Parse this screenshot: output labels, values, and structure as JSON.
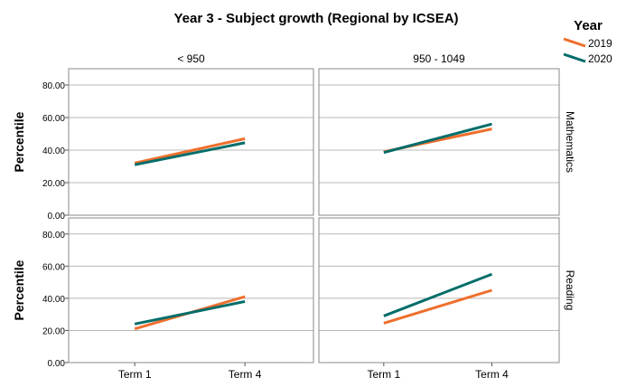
{
  "chart_data": {
    "type": "line",
    "title": "Year 3 - Subject growth (Regional by ICSEA)",
    "ylabel": "Percentile",
    "x": [
      "Term 1",
      "Term 4"
    ],
    "ylim": [
      0,
      90
    ],
    "yticks": [
      "0.00",
      "20.00",
      "40.00",
      "60.00",
      "80.00"
    ],
    "yticks_values": [
      0,
      20,
      40,
      60,
      80
    ],
    "columns": [
      "< 950",
      "950 - 1049"
    ],
    "rows": [
      "Mathematics",
      "Reading"
    ],
    "grid": true,
    "legend": {
      "title": "Year",
      "position": "top-right",
      "entries": [
        {
          "label": "2019",
          "color": "#ee6f2d"
        },
        {
          "label": "2020",
          "color": "#006d6a"
        }
      ]
    },
    "panels": [
      {
        "row": "Mathematics",
        "column": "< 950",
        "series": [
          {
            "name": "2019",
            "color": "#ee6f2d",
            "values": [
              32,
              47
            ]
          },
          {
            "name": "2020",
            "color": "#006d6a",
            "values": [
              31,
              44.5
            ]
          }
        ]
      },
      {
        "row": "Mathematics",
        "column": "950 - 1049",
        "series": [
          {
            "name": "2019",
            "color": "#ee6f2d",
            "values": [
              39,
              53
            ]
          },
          {
            "name": "2020",
            "color": "#006d6a",
            "values": [
              38.5,
              56
            ]
          }
        ]
      },
      {
        "row": "Reading",
        "column": "< 950",
        "series": [
          {
            "name": "2019",
            "color": "#ee6f2d",
            "values": [
              21,
              41
            ]
          },
          {
            "name": "2020",
            "color": "#006d6a",
            "values": [
              24,
              38
            ]
          }
        ]
      },
      {
        "row": "Reading",
        "column": "950 - 1049",
        "series": [
          {
            "name": "2019",
            "color": "#ee6f2d",
            "values": [
              24.5,
              45
            ]
          },
          {
            "name": "2020",
            "color": "#006d6a",
            "values": [
              29,
              55
            ]
          }
        ]
      }
    ]
  }
}
